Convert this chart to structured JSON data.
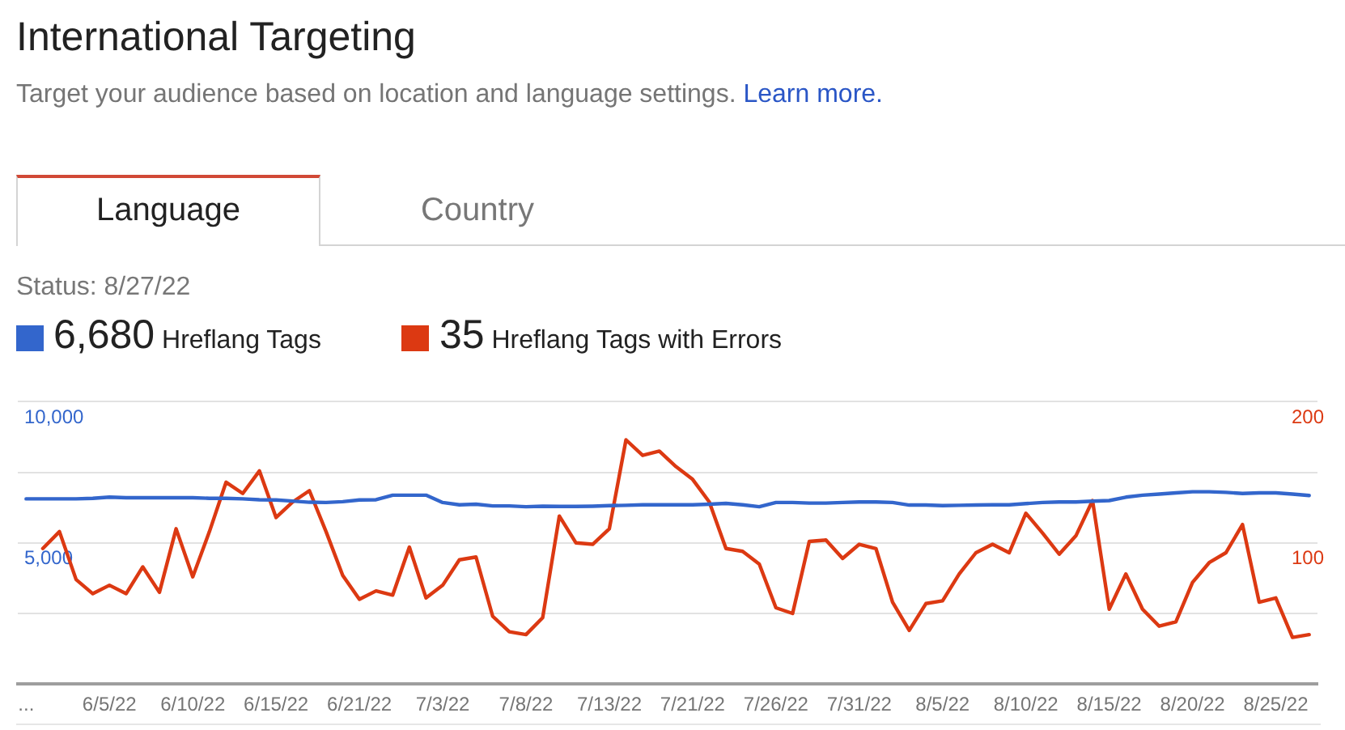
{
  "chart_data": {
    "type": "line",
    "title": "International Targeting",
    "subtitle": "Target your audience based on location and language settings.",
    "annotations": [
      "Learn more.",
      "Language",
      "Country",
      "Status: 8/27/22"
    ],
    "categories": [
      "...",
      null,
      null,
      null,
      null,
      "6/5/22",
      null,
      null,
      null,
      null,
      "6/10/22",
      null,
      null,
      null,
      null,
      "6/15/22",
      null,
      null,
      null,
      null,
      "6/21/22",
      null,
      null,
      null,
      null,
      "7/3/22",
      null,
      null,
      null,
      null,
      "7/8/22",
      null,
      null,
      null,
      null,
      "7/13/22",
      null,
      null,
      null,
      null,
      "7/21/22",
      null,
      null,
      null,
      null,
      "7/26/22",
      null,
      null,
      null,
      null,
      "7/31/22",
      null,
      null,
      null,
      null,
      "8/5/22",
      null,
      null,
      null,
      null,
      "8/10/22",
      null,
      null,
      null,
      null,
      "8/15/22",
      null,
      null,
      null,
      null,
      "8/20/22",
      null,
      null,
      null,
      null,
      "8/25/22",
      null,
      null
    ],
    "series": [
      {
        "name": "6,680 Hreflang Tags",
        "color": "#3366cc",
        "values": [
          6560,
          6560,
          6560,
          6560,
          6580,
          6620,
          6600,
          6600,
          6600,
          6600,
          6600,
          6580,
          6580,
          6560,
          6530,
          6520,
          6480,
          6440,
          6430,
          6460,
          6520,
          6530,
          6690,
          6690,
          6690,
          6430,
          6350,
          6370,
          6310,
          6310,
          6280,
          6300,
          6290,
          6290,
          6300,
          6320,
          6330,
          6350,
          6350,
          6350,
          6350,
          6370,
          6400,
          6350,
          6280,
          6430,
          6430,
          6410,
          6410,
          6430,
          6450,
          6450,
          6430,
          6340,
          6340,
          6320,
          6330,
          6340,
          6350,
          6350,
          6390,
          6430,
          6450,
          6450,
          6480,
          6500,
          6620,
          6690,
          6730,
          6770,
          6810,
          6810,
          6790,
          6750,
          6770,
          6770,
          6730,
          6680
        ]
      },
      {
        "name": "35 Hreflang Tags with Errors",
        "color": "#dc3912",
        "axis": "y2",
        "values": [
          null,
          96,
          108,
          74,
          64,
          70,
          64,
          83,
          65,
          110,
          76,
          108,
          143,
          135,
          151,
          118,
          129,
          137,
          108,
          77,
          60,
          66,
          63,
          97,
          61,
          70,
          88,
          90,
          48,
          37,
          35,
          47,
          119,
          100,
          99,
          110,
          173,
          162,
          165,
          154,
          145,
          129,
          96,
          94,
          85,
          54,
          50,
          101,
          102,
          89,
          99,
          96,
          58,
          38,
          57,
          59,
          78,
          93,
          99,
          93,
          121,
          107,
          92,
          105,
          130,
          53,
          78,
          53,
          41,
          44,
          72,
          86,
          93,
          113,
          58,
          61,
          33,
          35
        ]
      }
    ],
    "ylim": [
      0,
      10000
    ],
    "yticks": [
      {
        "value": 0,
        "label": null
      },
      {
        "value": 2500,
        "label": null
      },
      {
        "value": 5000,
        "label": "5,000"
      },
      {
        "value": 7500,
        "label": null
      },
      {
        "value": 10000,
        "label": "10,000"
      }
    ],
    "y2lim": [
      0,
      200
    ],
    "y2ticks": [
      100,
      200
    ],
    "grid": "y",
    "legend": "top left"
  }
}
